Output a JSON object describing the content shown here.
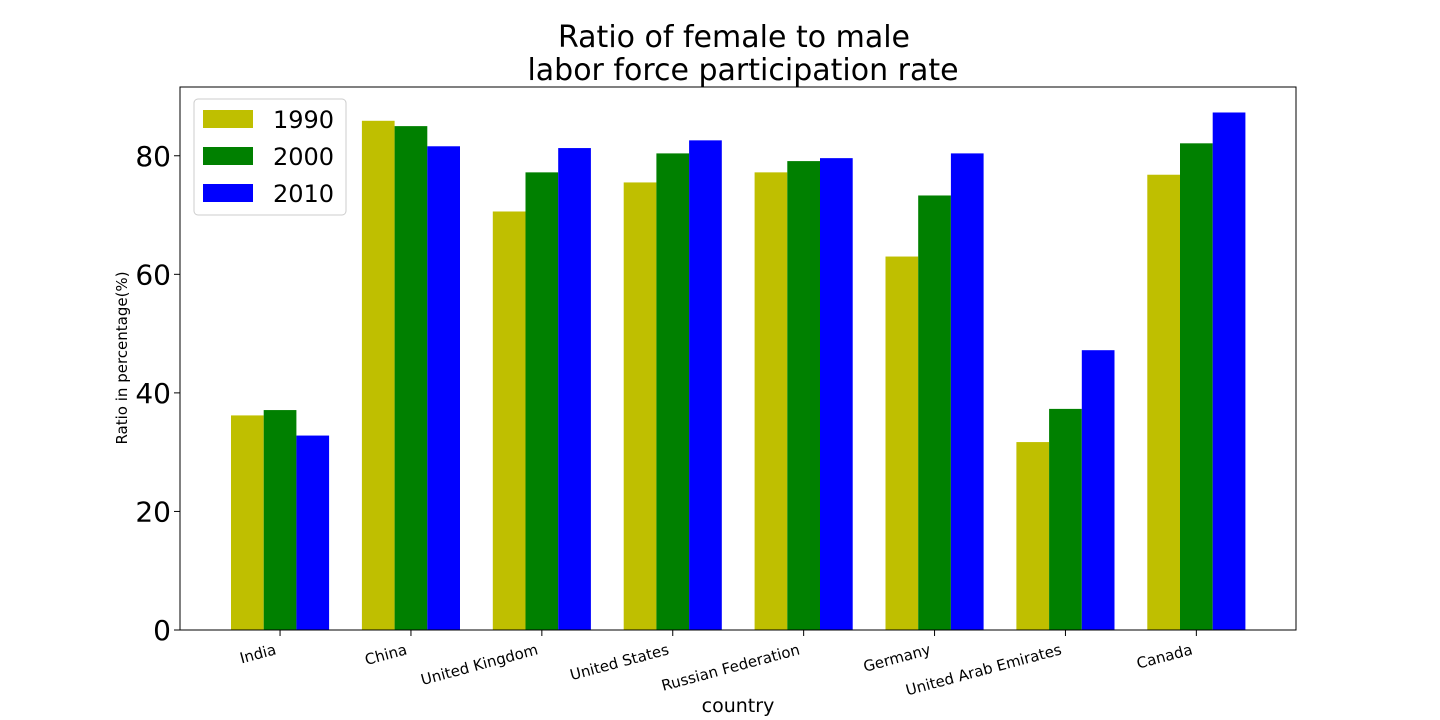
{
  "chart_data": {
    "type": "bar",
    "title": [
      "Ratio of female to male",
      "labor force participation rate"
    ],
    "xlabel": "country",
    "ylabel": "Ratio in percentage(%)",
    "categories": [
      "India",
      "China",
      "United Kingdom",
      "United States",
      "Russian Federation",
      "Germany",
      "United Arab Emirates",
      "Canada"
    ],
    "series": [
      {
        "name": "1990",
        "color": "#bfbf00",
        "values": [
          36.2,
          85.9,
          70.6,
          75.5,
          77.2,
          63.0,
          31.7,
          76.8
        ]
      },
      {
        "name": "2000",
        "color": "#008000",
        "values": [
          37.1,
          85.0,
          77.2,
          80.4,
          79.1,
          73.3,
          37.3,
          82.1
        ]
      },
      {
        "name": "2010",
        "color": "#0000ff",
        "values": [
          32.8,
          81.6,
          81.3,
          82.6,
          79.6,
          80.4,
          47.2,
          87.3
        ]
      }
    ],
    "yticks": [
      0,
      20,
      40,
      60,
      80
    ],
    "ylim": [
      0,
      91.6
    ],
    "legend_position": "top-left",
    "grid": false
  }
}
